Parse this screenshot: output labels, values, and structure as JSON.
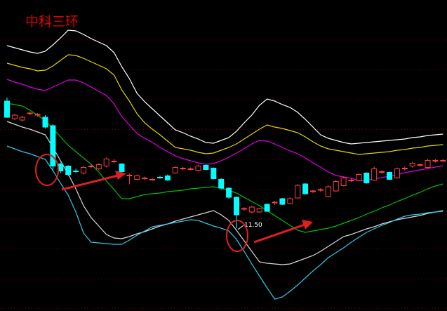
{
  "chart_data": {
    "type": "candlestick",
    "title": "中科三环",
    "ylim": [
      9.14,
      18
    ],
    "grid": true,
    "up_color": "#ff4040",
    "down_color": "#00ffff",
    "open": [
      15.12,
      14.62,
      14.58,
      14.76,
      14.72,
      14.66,
      14.42,
      13.33,
      13.27,
      13.13,
      13.07,
      13.25,
      13.19,
      13.27,
      13.39,
      13.33,
      12.99,
      12.89,
      12.91,
      12.87,
      12.95,
      12.99,
      13.07,
      13.19,
      13.19,
      13.15,
      13.29,
      13.21,
      12.89,
      12.64,
      12.38,
      12.04,
      11.96,
      11.96,
      12.18,
      12.22,
      12.34,
      12.2,
      12.36,
      12.76,
      12.54,
      12.58,
      12.4,
      12.56,
      12.71,
      12.85,
      12.85,
      13.07,
      12.87,
      13.09,
      13.09,
      12.93,
      13.19,
      13.27,
      13.29,
      13.23,
      13.41,
      13.41
    ],
    "high": [
      15.22,
      14.76,
      14.7,
      14.82,
      14.78,
      14.72,
      14.46,
      13.37,
      13.29,
      13.19,
      13.27,
      13.33,
      13.35,
      13.51,
      13.47,
      13.35,
      13.05,
      13.03,
      12.97,
      12.93,
      12.99,
      13.03,
      13.27,
      13.25,
      13.23,
      13.31,
      13.31,
      13.23,
      12.93,
      12.66,
      12.4,
      12.1,
      12.14,
      12.08,
      12.2,
      12.28,
      12.36,
      12.38,
      12.76,
      12.78,
      12.6,
      12.64,
      12.72,
      12.87,
      12.97,
      12.93,
      13.07,
      13.09,
      13.25,
      13.15,
      13.11,
      13.23,
      13.25,
      13.39,
      13.35,
      13.47,
      13.47,
      13.47
    ],
    "low": [
      14.64,
      14.58,
      14.54,
      14.72,
      14.68,
      14.34,
      13.15,
      13.07,
      12.99,
      13.07,
      13.03,
      13.21,
      13.15,
      13.23,
      13.35,
      13.09,
      12.75,
      12.87,
      12.87,
      12.85,
      12.91,
      12.85,
      13.05,
      13.15,
      13.15,
      13.13,
      13.15,
      12.89,
      12.6,
      12.34,
      11.5,
      12.0,
      11.92,
      11.94,
      11.96,
      12.16,
      12.16,
      12.18,
      12.34,
      12.46,
      12.5,
      12.54,
      12.38,
      12.54,
      12.69,
      12.81,
      12.83,
      12.77,
      12.85,
      13.05,
      12.87,
      12.91,
      13.15,
      13.23,
      13.25,
      13.21,
      13.37,
      13.39
    ],
    "close": [
      14.66,
      14.72,
      14.66,
      14.78,
      14.74,
      14.38,
      13.27,
      13.13,
      13.03,
      13.11,
      13.23,
      13.27,
      13.31,
      13.47,
      13.41,
      13.11,
      13.01,
      12.99,
      12.93,
      12.89,
      12.93,
      12.87,
      13.23,
      13.21,
      13.19,
      13.27,
      13.17,
      12.91,
      12.64,
      12.38,
      11.88,
      12.06,
      12.1,
      12.06,
      11.98,
      12.24,
      12.18,
      12.34,
      12.72,
      12.48,
      12.56,
      12.6,
      12.68,
      12.83,
      12.93,
      12.87,
      13.03,
      12.79,
      13.19,
      13.11,
      12.89,
      13.19,
      13.21,
      13.35,
      13.31,
      13.43,
      13.43,
      13.43
    ],
    "annotation": {
      "value": 11.5,
      "label": "11.50"
    },
    "series": [
      {
        "color": "#ffffff",
        "values": [
          16.7,
          16.64,
          16.58,
          16.52,
          16.48,
          16.54,
          16.72,
          16.92,
          17.14,
          17.12,
          17.02,
          16.9,
          16.8,
          16.7,
          16.5,
          16.1,
          15.76,
          15.34,
          15.1,
          14.9,
          14.7,
          14.5,
          14.3,
          14.22,
          14.12,
          14.04,
          13.94,
          13.92,
          14.0,
          14.08,
          14.26,
          14.5,
          14.72,
          15.0,
          15.18,
          15.12,
          15.02,
          14.94,
          14.8,
          14.6,
          14.38,
          14.16,
          14.06,
          14.0,
          13.94,
          13.9,
          13.92,
          13.94,
          13.96,
          13.98,
          14.0,
          14.02,
          14.04,
          14.08,
          14.1,
          14.14,
          14.16,
          14.18
        ]
      },
      {
        "color": "#e0d800",
        "values": [
          16.2,
          16.14,
          16.08,
          16.04,
          15.98,
          16.0,
          16.12,
          16.28,
          16.44,
          16.42,
          16.34,
          16.24,
          16.14,
          16.04,
          15.86,
          15.44,
          15.12,
          14.76,
          14.5,
          14.32,
          14.16,
          13.98,
          13.8,
          13.76,
          13.72,
          13.66,
          13.62,
          13.64,
          13.72,
          13.8,
          13.9,
          14.04,
          14.18,
          14.32,
          14.44,
          14.38,
          14.34,
          14.28,
          14.22,
          14.1,
          13.96,
          13.84,
          13.76,
          13.72,
          13.68,
          13.64,
          13.6,
          13.62,
          13.64,
          13.66,
          13.68,
          13.72,
          13.74,
          13.78,
          13.8,
          13.84,
          13.86,
          13.88
        ]
      },
      {
        "color": "#e000e0",
        "values": [
          15.74,
          15.66,
          15.6,
          15.52,
          15.46,
          15.42,
          15.52,
          15.62,
          15.72,
          15.72,
          15.64,
          15.52,
          15.4,
          15.28,
          15.04,
          14.68,
          14.44,
          14.2,
          14.06,
          13.94,
          13.8,
          13.68,
          13.56,
          13.48,
          13.42,
          13.36,
          13.32,
          13.34,
          13.42,
          13.52,
          13.64,
          13.76,
          13.9,
          14.0,
          13.98,
          13.9,
          13.8,
          13.7,
          13.62,
          13.5,
          13.36,
          13.24,
          13.1,
          13.0,
          12.96,
          12.92,
          12.86,
          12.86,
          12.9,
          12.94,
          12.98,
          13.02,
          13.08,
          13.12,
          13.16,
          13.2,
          13.24,
          13.28
        ]
      },
      {
        "color": "#00c000",
        "values": [
          15.06,
          15.02,
          14.98,
          14.86,
          14.72,
          14.56,
          14.34,
          14.1,
          13.86,
          13.68,
          13.5,
          13.32,
          13.1,
          12.84,
          12.6,
          12.34,
          12.34,
          12.4,
          12.46,
          12.48,
          12.5,
          12.54,
          12.56,
          12.58,
          12.62,
          12.64,
          12.66,
          12.68,
          12.64,
          12.58,
          12.5,
          12.38,
          12.26,
          12.14,
          12.0,
          11.86,
          11.72,
          11.58,
          11.44,
          11.38,
          11.42,
          11.46,
          11.5,
          11.56,
          11.64,
          11.72,
          11.8,
          11.9,
          11.98,
          12.08,
          12.16,
          12.26,
          12.34,
          12.44,
          12.52,
          12.62,
          12.7,
          12.76
        ]
      },
      {
        "color": "#d8d8d8",
        "values": [
          14.54,
          14.46,
          14.38,
          14.32,
          14.24,
          14.16,
          13.8,
          13.42,
          13.04,
          12.62,
          12.14,
          11.8,
          11.56,
          11.32,
          11.22,
          11.2,
          11.26,
          11.34,
          11.4,
          11.48,
          11.56,
          11.62,
          11.7,
          11.76,
          11.82,
          11.88,
          11.94,
          12.0,
          11.88,
          11.72,
          11.44,
          11.14,
          10.84,
          10.54,
          10.5,
          10.48,
          10.46,
          10.48,
          10.56,
          10.64,
          10.72,
          10.84,
          10.98,
          11.12,
          11.26,
          11.32,
          11.4,
          11.48,
          11.54,
          11.62,
          11.68,
          11.74,
          11.78,
          11.82,
          11.86,
          11.92,
          11.96,
          12.0
        ]
      },
      {
        "color": "#30c8e8",
        "values": [
          13.84,
          13.76,
          13.68,
          13.62,
          13.54,
          13.46,
          13.14,
          12.78,
          12.44,
          11.96,
          11.36,
          11.1,
          11.08,
          11.06,
          11.04,
          11.04,
          11.16,
          11.3,
          11.42,
          11.54,
          11.58,
          11.62,
          11.66,
          11.7,
          11.74,
          11.72,
          11.64,
          11.56,
          11.5,
          11.42,
          11.18,
          10.84,
          10.48,
          10.14,
          9.8,
          9.48,
          9.54,
          9.7,
          9.88,
          10.08,
          10.28,
          10.46,
          10.66,
          10.8,
          10.94,
          11.1,
          11.24,
          11.38,
          11.48,
          11.58,
          11.66,
          11.76,
          11.84,
          11.88,
          11.9,
          11.94,
          11.96,
          11.98
        ]
      }
    ]
  }
}
